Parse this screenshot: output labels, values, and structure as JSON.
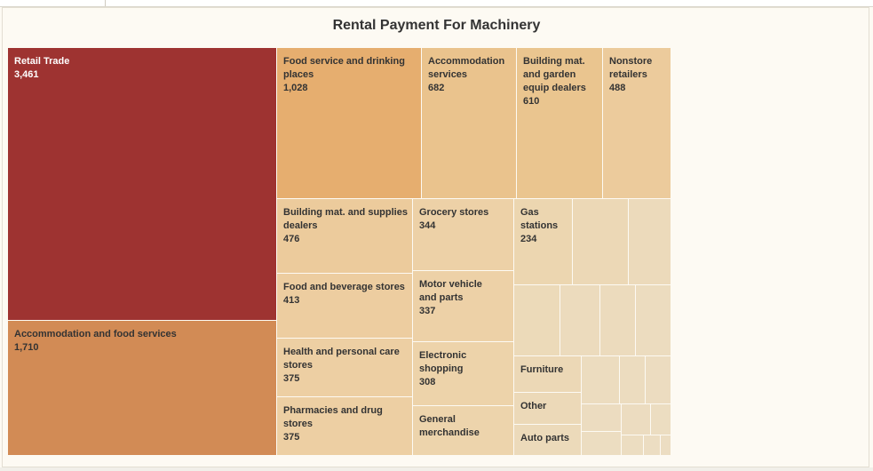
{
  "chart_data": {
    "type": "treemap",
    "title": "Rental Payment For Machinery",
    "color_scale": [
      "#ecdcc0",
      "#9e3331"
    ],
    "nodes": [
      {
        "label": "Retail Trade",
        "value": 3461,
        "value_label": "3,461",
        "color": "#9e3331"
      },
      {
        "label": "Accommodation and food services",
        "value": 1710,
        "value_label": "1,710",
        "color": "#d28b55"
      },
      {
        "label": "Food service and drinking places",
        "value": 1028,
        "value_label": "1,028",
        "color": "#e6ae6f"
      },
      {
        "label": "Accommodation services",
        "value": 682,
        "value_label": "682",
        "color": "#eac38d"
      },
      {
        "label": "Building mat. and garden equip dealers",
        "value": 610,
        "value_label": "610",
        "color": "#eac58f"
      },
      {
        "label": "Nonstore retailers",
        "value": 488,
        "value_label": "488",
        "color": "#eccb9c"
      },
      {
        "label": "Building mat. and supplies dealers",
        "value": 476,
        "value_label": "476",
        "color": "#eccb9c"
      },
      {
        "label": "Food and beverage stores",
        "value": 413,
        "value_label": "413",
        "color": "#edcda0"
      },
      {
        "label": "Health and personal care stores",
        "value": 375,
        "value_label": "375",
        "color": "#edcfa3"
      },
      {
        "label": "Pharmacies and drug stores",
        "value": 375,
        "value_label": "375",
        "color": "#edcfa3"
      },
      {
        "label": "Grocery stores",
        "value": 344,
        "value_label": "344",
        "color": "#edd1a7"
      },
      {
        "label": "Motor vehicle and parts",
        "value": 337,
        "value_label": "337",
        "color": "#edd1a7"
      },
      {
        "label": "Electronic shopping",
        "value": 308,
        "value_label": "308",
        "color": "#edd3aa"
      },
      {
        "label": "General merchandise",
        "value": null,
        "value_label": "",
        "color": "#edd4ac"
      },
      {
        "label": "Gas stations",
        "value": 234,
        "value_label": "234",
        "color": "#ecd6b0"
      },
      {
        "label": "Furniture",
        "value": null,
        "value_label": "",
        "color": "#ecd8b6"
      },
      {
        "label": "Other",
        "value": null,
        "value_label": "",
        "color": "#ecd9b8"
      },
      {
        "label": "Auto parts",
        "value": null,
        "value_label": "",
        "color": "#ecdaba"
      },
      {
        "label": "",
        "value": null,
        "value_label": "",
        "color": "#ecd8b6"
      },
      {
        "label": "",
        "value": null,
        "value_label": "",
        "color": "#ecdabb"
      },
      {
        "label": "",
        "value": null,
        "value_label": "",
        "color": "#ecdab9"
      },
      {
        "label": "",
        "value": null,
        "value_label": "",
        "color": "#ecdbbd"
      },
      {
        "label": "",
        "value": null,
        "value_label": "",
        "color": "#ecdbbd"
      },
      {
        "label": "",
        "value": null,
        "value_label": "",
        "color": "#ecdcbf"
      },
      {
        "label": "",
        "value": null,
        "value_label": "",
        "color": "#ecdcbf"
      },
      {
        "label": "",
        "value": null,
        "value_label": "",
        "color": "#ecdcbf"
      },
      {
        "label": "",
        "value": null,
        "value_label": "",
        "color": "#ecdcc0"
      },
      {
        "label": "",
        "value": null,
        "value_label": "",
        "color": "#ecdcc0"
      },
      {
        "label": "",
        "value": null,
        "value_label": "",
        "color": "#ecdcc0"
      },
      {
        "label": "",
        "value": null,
        "value_label": "",
        "color": "#ecddc1"
      },
      {
        "label": "",
        "value": null,
        "value_label": "",
        "color": "#ecddc1"
      },
      {
        "label": "",
        "value": null,
        "value_label": "",
        "color": "#ecddc1"
      },
      {
        "label": "",
        "value": null,
        "value_label": "",
        "color": "#ecddc2"
      },
      {
        "label": "",
        "value": null,
        "value_label": "",
        "color": "#ecddc2"
      },
      {
        "label": "",
        "value": null,
        "value_label": "",
        "color": "#ecddc2"
      },
      {
        "label": "",
        "value": null,
        "value_label": "",
        "color": "#ecddc2"
      }
    ]
  }
}
